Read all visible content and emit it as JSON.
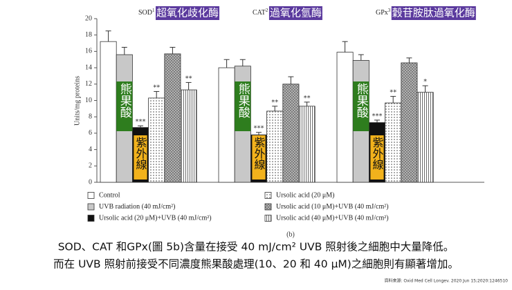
{
  "chart_data": {
    "type": "bar",
    "categories": [
      "SOD",
      "CAT",
      "GPx"
    ],
    "category_notes": [
      "1",
      "2",
      "3"
    ],
    "category_names": [
      "超氧化歧化酶",
      "過氧化氫酶",
      "穀苷胺肽過氧化酶"
    ],
    "y_label": "Units/mg proteins",
    "panel_label": "(b)",
    "ylim": [
      0,
      20
    ],
    "yticks": [
      0,
      2,
      4,
      6,
      8,
      10,
      12,
      14,
      16,
      18,
      20
    ],
    "series": [
      {
        "name": "Control",
        "color": "#ffffff",
        "pattern": "solid",
        "values": [
          17.2,
          14.0,
          15.9
        ],
        "errors": [
          1.3,
          1.0,
          1.3
        ],
        "annotations": [
          null,
          null,
          null
        ]
      },
      {
        "name": "UVB radiation (40 mJ/cm²)",
        "color": "#c8c8c8",
        "pattern": "solid",
        "values": [
          15.6,
          14.2,
          14.9
        ],
        "errors": [
          0.9,
          0.8,
          0.7
        ],
        "annotations": [
          null,
          null,
          null
        ]
      },
      {
        "name": "Ursolic acid (20 μM)+UVB (40 mJ/cm²)",
        "color": "#111111",
        "pattern": "solid",
        "values": [
          6.7,
          5.8,
          7.3
        ],
        "errors": [
          0.2,
          0.3,
          0.3
        ],
        "annotations": [
          "***",
          "***",
          "***"
        ]
      },
      {
        "name": "Ursolic acid (20 μM)",
        "color": "#ffffff",
        "pattern": "dots",
        "values": [
          10.3,
          8.7,
          9.7
        ],
        "errors": [
          0.8,
          0.6,
          0.8
        ],
        "annotations": [
          "**",
          "**",
          "**"
        ]
      },
      {
        "name": "Ursolic acid (10 μM)+UVB (40 mJ/cm²)",
        "color": "#bdbdbd",
        "pattern": "crosshatch",
        "values": [
          15.7,
          12.0,
          14.6
        ],
        "errors": [
          0.8,
          0.9,
          0.6
        ],
        "annotations": [
          null,
          null,
          null
        ]
      },
      {
        "name": "Ursolic acid (40 μM)+UVB (40 mJ/cm²)",
        "color": "#ffffff",
        "pattern": "vlines",
        "values": [
          11.3,
          9.3,
          11.0
        ],
        "errors": [
          0.9,
          0.5,
          0.8
        ],
        "annotations": [
          "**",
          "**",
          "*"
        ]
      }
    ],
    "overlay_labels": {
      "ursolic": "熊果酸",
      "uvb": "紫外線"
    }
  },
  "caption": [
    "SOD、CAT 和GPx(圖 5b)含量在接受 40 mJ/cm² UVB 照射後之細胞中大量降低。",
    "而在 UVB 照射前接受不同濃度熊果酸處理(10、20 和 40 μM)之細胞則有顯著增加。"
  ],
  "source": "資料來源: Oxid Med Cell Longev. 2020 Jun 15;2020:1246510"
}
